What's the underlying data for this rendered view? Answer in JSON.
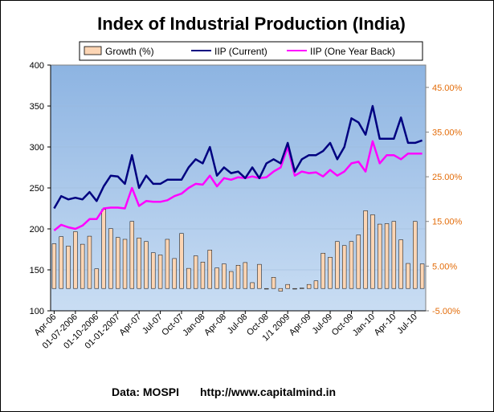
{
  "chart_data": {
    "type": "bar+line",
    "title": "Index of Industrial Production (India)",
    "footer": {
      "source": "Data: MOSPI",
      "url": "http://www.capitalmind.in"
    },
    "legend": {
      "placement": "top",
      "entries": [
        "Growth (%)",
        "IIP (Current)",
        "IIP (One Year Back)"
      ]
    },
    "x_tick_labels": [
      {
        "index": 0,
        "label": "Apr-06"
      },
      {
        "index": 3,
        "label": "01-07-2006"
      },
      {
        "index": 6,
        "label": "01-10-2006"
      },
      {
        "index": 9,
        "label": "01-01-2007"
      },
      {
        "index": 12,
        "label": "Apr-07"
      },
      {
        "index": 15,
        "label": "Jul-07"
      },
      {
        "index": 18,
        "label": "Oct-07"
      },
      {
        "index": 21,
        "label": "Jan-08"
      },
      {
        "index": 24,
        "label": "Apr-08"
      },
      {
        "index": 27,
        "label": "Jul-08"
      },
      {
        "index": 30,
        "label": "Oct-08"
      },
      {
        "index": 33,
        "label": "1/1 2009"
      },
      {
        "index": 36,
        "label": "Apr-09"
      },
      {
        "index": 39,
        "label": "Jul-09"
      },
      {
        "index": 42,
        "label": "Oct-09"
      },
      {
        "index": 45,
        "label": "Jan-10"
      },
      {
        "index": 48,
        "label": "Apr-10"
      },
      {
        "index": 51,
        "label": "Jul-10"
      }
    ],
    "y_axis": {
      "min": 100,
      "max": 400,
      "ticks": [
        "100",
        "150",
        "200",
        "250",
        "300",
        "350",
        "400"
      ]
    },
    "y2_axis": {
      "min": -5,
      "max": 50,
      "ticks": [
        "-5.00%",
        "5.00%",
        "15.00%",
        "25.00%",
        "35.00%",
        "45.00%"
      ]
    },
    "series": [
      {
        "name": "Growth (%)",
        "axis": "secondary",
        "color": "#FCD5B4",
        "values": [
          10.0,
          11.6,
          9.5,
          12.7,
          9.9,
          11.7,
          4.4,
          17.7,
          13.4,
          11.4,
          11.0,
          15.0,
          11.3,
          10.5,
          8.0,
          7.5,
          11.0,
          6.7,
          12.3,
          4.5,
          7.3,
          5.9,
          8.6,
          4.6,
          5.5,
          3.8,
          5.2,
          5.8,
          1.3,
          5.4,
          0.0,
          2.5,
          -0.6,
          0.9,
          0.0,
          0.1,
          0.9,
          1.7,
          7.9,
          7.0,
          10.5,
          9.6,
          10.5,
          12.0,
          17.4,
          16.5,
          14.4,
          14.5,
          15.0,
          10.9,
          5.6,
          15.0,
          5.5
        ]
      },
      {
        "name": "IIP (Current)",
        "axis": "primary",
        "color": "#000080",
        "values": [
          225,
          240,
          236,
          238,
          236,
          245,
          234,
          252,
          265,
          264,
          255,
          290,
          250,
          265,
          255,
          255,
          260,
          260,
          260,
          275,
          285,
          280,
          300,
          265,
          275,
          268,
          270,
          262,
          275,
          262,
          280,
          285,
          280,
          305,
          270,
          285,
          290,
          290,
          295,
          305,
          285,
          300,
          335,
          330,
          315,
          350,
          310,
          310,
          310,
          336,
          305,
          305,
          308
        ]
      },
      {
        "name": "IIP (One Year Back)",
        "axis": "primary",
        "color": "#FF00FF",
        "values": [
          198,
          205,
          202,
          200,
          204,
          212,
          212,
          225,
          226,
          226,
          225,
          250,
          228,
          234,
          233,
          233,
          235,
          240,
          243,
          250,
          255,
          254,
          265,
          252,
          262,
          260,
          263,
          262,
          264,
          262,
          263,
          270,
          275,
          300,
          265,
          270,
          268,
          269,
          264,
          272,
          265,
          270,
          280,
          282,
          270,
          307,
          280,
          290,
          290,
          285,
          292,
          292,
          292
        ]
      }
    ]
  }
}
